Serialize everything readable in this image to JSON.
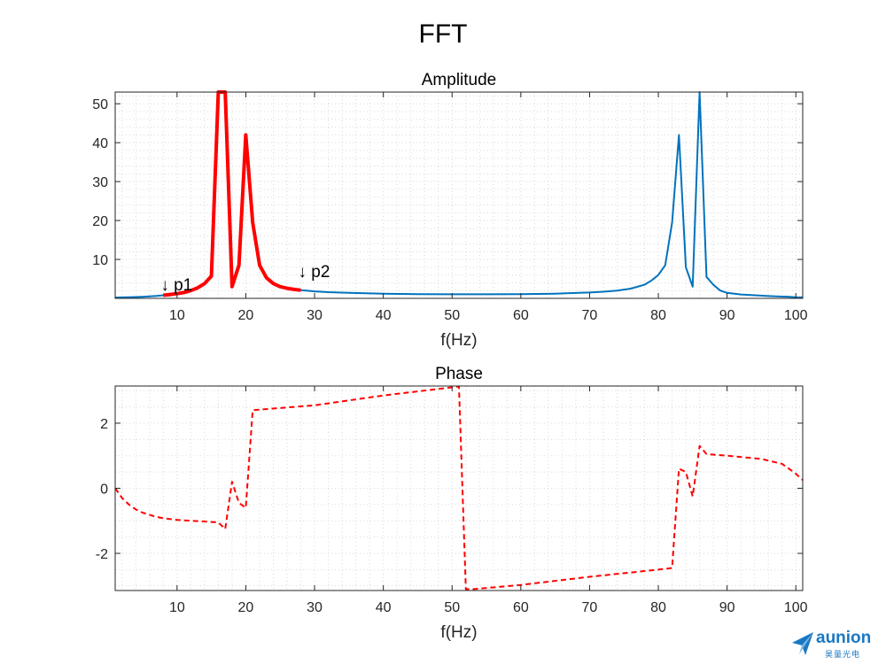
{
  "figure": {
    "title": "FFT",
    "logo": {
      "name": "aunion",
      "subtitle": "昊量光电"
    }
  },
  "chart_data": [
    {
      "type": "line",
      "title": "Amplitude",
      "xlabel": "f(Hz)",
      "ylabel": "",
      "xlim": [
        1,
        101
      ],
      "ylim": [
        0,
        53
      ],
      "xticks": [
        10,
        20,
        30,
        40,
        50,
        60,
        70,
        80,
        90,
        100
      ],
      "yticks": [
        10,
        20,
        30,
        40,
        50
      ],
      "grid": "minor",
      "series": [
        {
          "color": "#0072bd",
          "style": "solid",
          "x": [
            1,
            2,
            3,
            4,
            5,
            6,
            7,
            8,
            9,
            10,
            11,
            12,
            13,
            14,
            15,
            16,
            17,
            18,
            19,
            20,
            21,
            22,
            23,
            24,
            25,
            26,
            27,
            28,
            29,
            30,
            32,
            35,
            40,
            45,
            50,
            55,
            60,
            65,
            70,
            72,
            74,
            76,
            78,
            79,
            80,
            81,
            82,
            83,
            84,
            85,
            86,
            87,
            88,
            89,
            90,
            92,
            94,
            96,
            98,
            99,
            100,
            101
          ],
          "y": [
            0.2,
            0.25,
            0.3,
            0.35,
            0.42,
            0.5,
            0.62,
            0.8,
            1.0,
            1.2,
            1.5,
            2.0,
            2.7,
            3.8,
            5.7,
            53,
            53,
            3.0,
            8.5,
            42,
            19.5,
            8.5,
            5.3,
            3.8,
            3.0,
            2.6,
            2.3,
            2.1,
            1.95,
            1.8,
            1.6,
            1.4,
            1.2,
            1.1,
            1.05,
            1.05,
            1.1,
            1.2,
            1.5,
            1.7,
            2.0,
            2.5,
            3.5,
            4.6,
            6.0,
            8.5,
            19.5,
            42,
            8.0,
            3.0,
            53,
            5.5,
            3.5,
            2.0,
            1.4,
            1.0,
            0.8,
            0.6,
            0.45,
            0.4,
            0.3,
            0.25
          ]
        },
        {
          "color": "#ff0000",
          "style": "solid",
          "width": 4,
          "x": [
            8,
            9,
            10,
            11,
            12,
            13,
            14,
            15,
            16,
            17,
            18,
            19,
            20,
            21,
            22,
            23,
            24,
            25,
            26,
            27,
            28
          ],
          "y": [
            0.8,
            1.0,
            1.2,
            1.5,
            2.0,
            2.7,
            3.8,
            5.7,
            53,
            53,
            3.0,
            8.5,
            42,
            19.5,
            8.5,
            5.3,
            3.8,
            3.0,
            2.6,
            2.3,
            2.1
          ]
        }
      ],
      "annotations": [
        {
          "text": "↓ p1",
          "x": 8,
          "y": 2.0
        },
        {
          "text": "↓ p2",
          "x": 28,
          "y": 5.5
        }
      ]
    },
    {
      "type": "line",
      "title": "Phase",
      "xlabel": "f(Hz)",
      "ylabel": "",
      "xlim": [
        1,
        101
      ],
      "ylim": [
        -3.1416,
        3.1416
      ],
      "xticks": [
        10,
        20,
        30,
        40,
        50,
        60,
        70,
        80,
        90,
        100
      ],
      "yticks": [
        -2,
        0,
        2
      ],
      "grid": "minor",
      "series": [
        {
          "color": "#ff0000",
          "style": "dashed",
          "x": [
            1,
            2,
            3,
            4,
            5,
            6,
            7,
            8,
            10,
            12,
            14,
            16,
            17,
            18,
            19,
            20,
            21,
            30,
            40,
            50,
            51,
            52,
            53,
            60,
            70,
            80,
            82,
            83,
            84,
            85,
            86,
            87,
            90,
            95,
            98,
            100,
            101
          ],
          "y": [
            0,
            -0.3,
            -0.5,
            -0.65,
            -0.75,
            -0.82,
            -0.88,
            -0.92,
            -0.97,
            -1.0,
            -1.02,
            -1.05,
            -1.25,
            0.2,
            -0.45,
            -0.6,
            2.4,
            2.55,
            2.85,
            3.1,
            3.13,
            -3.1,
            -3.1,
            -2.97,
            -2.72,
            -2.5,
            -2.45,
            0.6,
            0.5,
            -0.25,
            1.3,
            1.05,
            1.0,
            0.9,
            0.75,
            0.45,
            0.25
          ]
        }
      ],
      "annotations": []
    }
  ]
}
